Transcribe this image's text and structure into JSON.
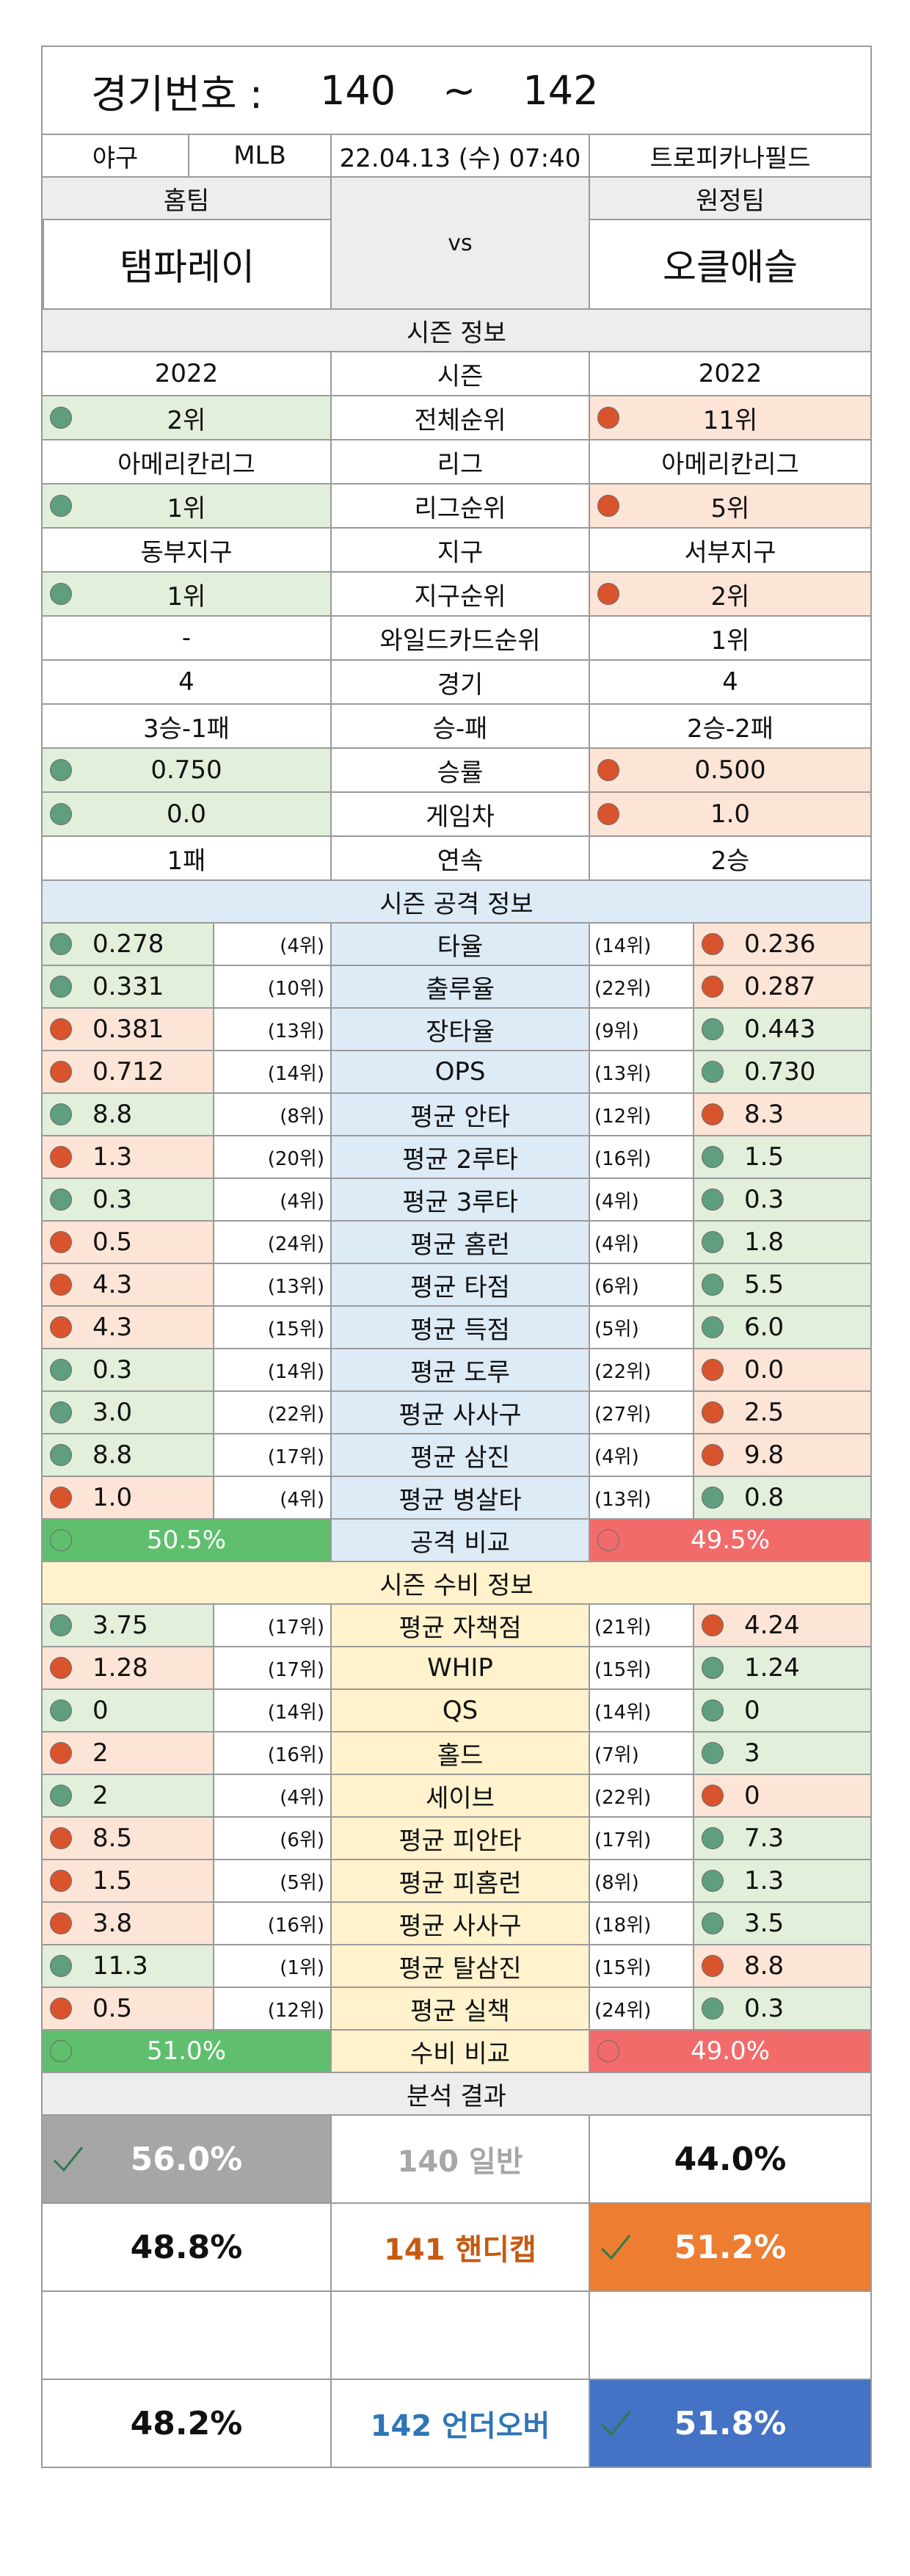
{
  "header": {
    "game_label": "경기번호 :",
    "game_from": "140",
    "game_sep": "~",
    "game_to": "142"
  },
  "info": {
    "sport": "야구",
    "league": "MLB",
    "datetime": "22.04.13 (수) 07:40",
    "venue": "트로피카나필드"
  },
  "teams": {
    "home_label": "홈팀",
    "away_label": "원정팀",
    "vs": "vs",
    "home_name": "탬파레이",
    "away_name": "오클애슬"
  },
  "season": {
    "title": "시즌 정보",
    "rows": [
      {
        "label": "시즌",
        "home": "2022",
        "away": "2022",
        "home_dot": "",
        "away_dot": ""
      },
      {
        "label": "전체순위",
        "home": "2위",
        "away": "11위",
        "home_dot": "good",
        "away_dot": "bad"
      },
      {
        "label": "리그",
        "home": "아메리칸리그",
        "away": "아메리칸리그",
        "home_dot": "",
        "away_dot": ""
      },
      {
        "label": "리그순위",
        "home": "1위",
        "away": "5위",
        "home_dot": "good",
        "away_dot": "bad"
      },
      {
        "label": "지구",
        "home": "동부지구",
        "away": "서부지구",
        "home_dot": "",
        "away_dot": ""
      },
      {
        "label": "지구순위",
        "home": "1위",
        "away": "2위",
        "home_dot": "good",
        "away_dot": "bad"
      },
      {
        "label": "와일드카드순위",
        "home": "-",
        "away": "1위",
        "home_dot": "",
        "away_dot": ""
      },
      {
        "label": "경기",
        "home": "4",
        "away": "4",
        "home_dot": "",
        "away_dot": ""
      },
      {
        "label": "승-패",
        "home": "3승-1패",
        "away": "2승-2패",
        "home_dot": "",
        "away_dot": ""
      },
      {
        "label": "승률",
        "home": "0.750",
        "away": "0.500",
        "home_dot": "good",
        "away_dot": "bad"
      },
      {
        "label": "게임차",
        "home": "0.0",
        "away": "1.0",
        "home_dot": "good",
        "away_dot": "bad"
      },
      {
        "label": "연속",
        "home": "1패",
        "away": "2승",
        "home_dot": "",
        "away_dot": ""
      }
    ]
  },
  "offense": {
    "title": "시즌 공격 정보",
    "rows": [
      {
        "label": "타율",
        "home": "0.278",
        "home_rank": "(4위)",
        "away": "0.236",
        "away_rank": "(14위)",
        "home_dot": "good",
        "away_dot": "bad"
      },
      {
        "label": "출루율",
        "home": "0.331",
        "home_rank": "(10위)",
        "away": "0.287",
        "away_rank": "(22위)",
        "home_dot": "good",
        "away_dot": "bad"
      },
      {
        "label": "장타율",
        "home": "0.381",
        "home_rank": "(13위)",
        "away": "0.443",
        "away_rank": "(9위)",
        "home_dot": "bad",
        "away_dot": "good"
      },
      {
        "label": "OPS",
        "home": "0.712",
        "home_rank": "(14위)",
        "away": "0.730",
        "away_rank": "(13위)",
        "home_dot": "bad",
        "away_dot": "good"
      },
      {
        "label": "평균 안타",
        "home": "8.8",
        "home_rank": "(8위)",
        "away": "8.3",
        "away_rank": "(12위)",
        "home_dot": "good",
        "away_dot": "bad"
      },
      {
        "label": "평균 2루타",
        "home": "1.3",
        "home_rank": "(20위)",
        "away": "1.5",
        "away_rank": "(16위)",
        "home_dot": "bad",
        "away_dot": "good"
      },
      {
        "label": "평균 3루타",
        "home": "0.3",
        "home_rank": "(4위)",
        "away": "0.3",
        "away_rank": "(4위)",
        "home_dot": "good",
        "away_dot": "good"
      },
      {
        "label": "평균 홈런",
        "home": "0.5",
        "home_rank": "(24위)",
        "away": "1.8",
        "away_rank": "(4위)",
        "home_dot": "bad",
        "away_dot": "good"
      },
      {
        "label": "평균 타점",
        "home": "4.3",
        "home_rank": "(13위)",
        "away": "5.5",
        "away_rank": "(6위)",
        "home_dot": "bad",
        "away_dot": "good"
      },
      {
        "label": "평균 득점",
        "home": "4.3",
        "home_rank": "(15위)",
        "away": "6.0",
        "away_rank": "(5위)",
        "home_dot": "bad",
        "away_dot": "good"
      },
      {
        "label": "평균 도루",
        "home": "0.3",
        "home_rank": "(14위)",
        "away": "0.0",
        "away_rank": "(22위)",
        "home_dot": "good",
        "away_dot": "bad"
      },
      {
        "label": "평균 사사구",
        "home": "3.0",
        "home_rank": "(22위)",
        "away": "2.5",
        "away_rank": "(27위)",
        "home_dot": "good",
        "away_dot": "bad"
      },
      {
        "label": "평균 삼진",
        "home": "8.8",
        "home_rank": "(17위)",
        "away": "9.8",
        "away_rank": "(4위)",
        "home_dot": "good",
        "away_dot": "bad"
      },
      {
        "label": "평균 병살타",
        "home": "1.0",
        "home_rank": "(4위)",
        "away": "0.8",
        "away_rank": "(13위)",
        "home_dot": "bad",
        "away_dot": "good"
      }
    ],
    "compare_label": "공격 비교",
    "home_pct": "50.5%",
    "away_pct": "49.5%"
  },
  "defense": {
    "title": "시즌 수비 정보",
    "rows": [
      {
        "label": "평균 자책점",
        "home": "3.75",
        "home_rank": "(17위)",
        "away": "4.24",
        "away_rank": "(21위)",
        "home_dot": "good",
        "away_dot": "bad"
      },
      {
        "label": "WHIP",
        "home": "1.28",
        "home_rank": "(17위)",
        "away": "1.24",
        "away_rank": "(15위)",
        "home_dot": "bad",
        "away_dot": "good"
      },
      {
        "label": "QS",
        "home": "0",
        "home_rank": "(14위)",
        "away": "0",
        "away_rank": "(14위)",
        "home_dot": "good",
        "away_dot": "good"
      },
      {
        "label": "홀드",
        "home": "2",
        "home_rank": "(16위)",
        "away": "3",
        "away_rank": "(7위)",
        "home_dot": "bad",
        "away_dot": "good"
      },
      {
        "label": "세이브",
        "home": "2",
        "home_rank": "(4위)",
        "away": "0",
        "away_rank": "(22위)",
        "home_dot": "good",
        "away_dot": "bad"
      },
      {
        "label": "평균 피안타",
        "home": "8.5",
        "home_rank": "(6위)",
        "away": "7.3",
        "away_rank": "(17위)",
        "home_dot": "bad",
        "away_dot": "good"
      },
      {
        "label": "평균 피홈런",
        "home": "1.5",
        "home_rank": "(5위)",
        "away": "1.3",
        "away_rank": "(8위)",
        "home_dot": "bad",
        "away_dot": "good"
      },
      {
        "label": "평균 사사구",
        "home": "3.8",
        "home_rank": "(16위)",
        "away": "3.5",
        "away_rank": "(18위)",
        "home_dot": "bad",
        "away_dot": "good"
      },
      {
        "label": "평균 탈삼진",
        "home": "11.3",
        "home_rank": "(1위)",
        "away": "8.8",
        "away_rank": "(15위)",
        "home_dot": "good",
        "away_dot": "bad"
      },
      {
        "label": "평균 실책",
        "home": "0.5",
        "home_rank": "(12위)",
        "away": "0.3",
        "away_rank": "(24위)",
        "home_dot": "bad",
        "away_dot": "good"
      }
    ],
    "compare_label": "수비 비교",
    "home_pct": "51.0%",
    "away_pct": "49.0%"
  },
  "analysis": {
    "title": "분석 결과",
    "general": {
      "label": "140 일반",
      "home": "56.0%",
      "away": "44.0%"
    },
    "handicap": {
      "label": "141 핸디캡",
      "home": "48.8%",
      "away": "51.2%"
    },
    "overunder": {
      "label": "142 언더오버",
      "home": "48.2%",
      "away": "51.8%"
    }
  },
  "colors": {
    "good_dot": "#5f9e7f",
    "bad_dot": "#d9542c",
    "home_bar": "#5fbf6e",
    "away_bar": "#f26b6b",
    "general_pick": "#a6a6a6",
    "handicap_pick": "#ed7d31",
    "overunder_pick": "#4472c4",
    "handicap_text": "#c55a11",
    "overunder_text": "#2e75b6"
  }
}
